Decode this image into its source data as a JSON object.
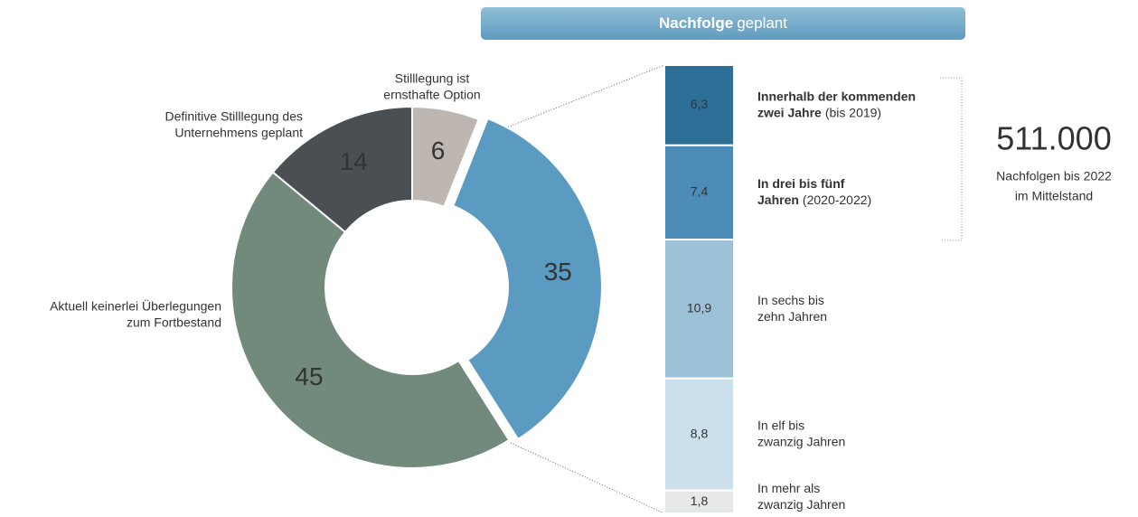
{
  "chart_data": [
    {
      "type": "donut",
      "categories": [
        null,
        [
          "Aktuell keinerlei Überlegungen",
          "zum Fortbestand"
        ],
        [
          "Definitive Stilllegung des",
          "Unternehmens geplant"
        ],
        [
          "Stilllegung ist",
          "ernsthafte Option"
        ]
      ],
      "values": [
        35,
        45,
        14,
        6
      ],
      "colors": [
        "#5b9bc1",
        "#718a7c",
        "#4a4f54",
        "#beb7b1"
      ],
      "value_label_colors": [
        "#ffffff",
        "#ffffff",
        "#ffffff",
        "#666666"
      ],
      "exploded": [
        true,
        false,
        false,
        false
      ]
    },
    {
      "type": "stacked_bar",
      "title_bold": "Nachfolge",
      "title": "geplant",
      "categories": [
        [
          [
            {
              "text": "Innerhalb der kommenden",
              "style": "bold"
            }
          ],
          [
            {
              "text": "zwei Jahre",
              "style": "bold"
            },
            {
              "text": "(bis 2019)"
            }
          ]
        ],
        [
          [
            {
              "text": "In drei bis fünf",
              "style": "bold"
            }
          ],
          [
            {
              "text": "Jahren",
              "style": "bold"
            },
            {
              "text": "(2020-2022)"
            }
          ]
        ],
        [
          [
            {
              "text": "In sechs bis"
            }
          ],
          [
            {
              "text": "zehn Jahren"
            }
          ]
        ],
        [
          [
            {
              "text": "In elf bis"
            }
          ],
          [
            {
              "text": "zwanzig Jahren"
            }
          ]
        ],
        [
          [
            {
              "text": "In mehr als"
            }
          ],
          [
            {
              "text": "zwanzig Jahren"
            }
          ]
        ]
      ],
      "values": [
        6.3,
        7.4,
        10.9,
        8.8,
        1.8
      ],
      "value_labels": [
        "6,3",
        "7,4",
        "10,9",
        "8,8",
        "1,8"
      ],
      "colors": [
        "#2e6f97",
        "#4d8cb7",
        "#9dc2d8",
        "#cbe0eb",
        "#e6e9e8"
      ],
      "value_label_colors": [
        "#ffffff",
        "#ffffff",
        "#ffffff",
        "#444444",
        "#444444"
      ],
      "annotation": {
        "value": 511000,
        "label": "511.000",
        "text": [
          "Nachfolgen bis 2022",
          "im Mittelstand"
        ]
      }
    }
  ]
}
